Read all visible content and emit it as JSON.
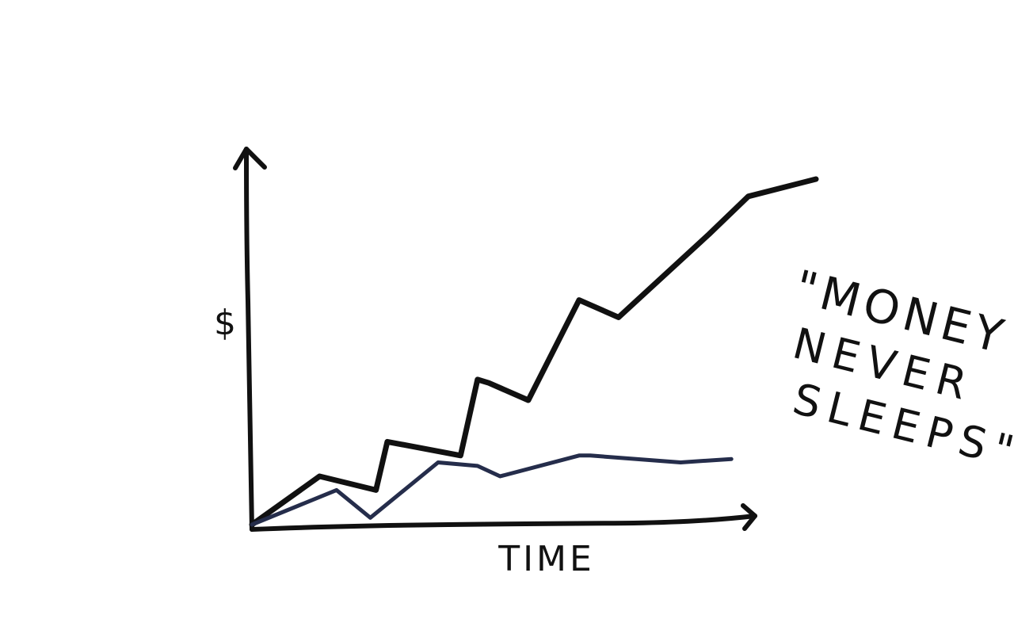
{
  "chart_data": {
    "type": "line",
    "title": "",
    "xlabel": "TIME",
    "ylabel": "$",
    "annotation_lines": [
      "\"MONEY",
      "NEVER",
      "SLEEPS\""
    ],
    "xlim": [
      0,
      100
    ],
    "ylim": [
      0,
      100
    ],
    "grid": false,
    "legend": "none",
    "series": [
      {
        "color": "#111111",
        "x": [
          0,
          12,
          22,
          24,
          37,
          40,
          42,
          49,
          58,
          65,
          81,
          88,
          100
        ],
        "y": [
          0,
          14,
          10,
          24,
          20,
          42,
          41,
          36,
          65,
          60,
          84,
          95,
          100
        ]
      },
      {
        "color": "#252d4b",
        "x": [
          0,
          15,
          21,
          24,
          33,
          40,
          44,
          58,
          60,
          76,
          85
        ],
        "y": [
          0,
          10,
          2,
          6,
          18,
          17,
          14,
          20,
          20,
          18,
          19
        ]
      }
    ]
  },
  "colors": {
    "ink": "#111111",
    "accent": "#252d4b",
    "background": "#ffffff"
  }
}
